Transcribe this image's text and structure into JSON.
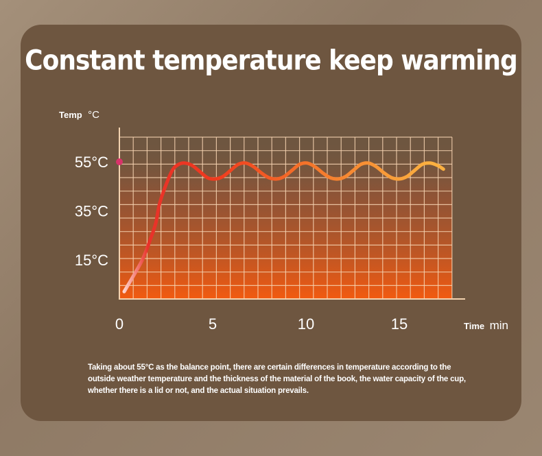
{
  "title": "Constant temperature keep warming",
  "chart_data": {
    "type": "line",
    "title": "Constant temperature keep warming",
    "ylabel_bold": "Temp",
    "ylabel_unit": "°C",
    "xlabel_bold": "Time",
    "xlabel_unit": "min",
    "y_ticks": [
      {
        "value": 15,
        "label": "15°C"
      },
      {
        "value": 35,
        "label": "35°C"
      },
      {
        "value": 55,
        "label": "55°C"
      }
    ],
    "x_ticks": [
      {
        "value": 0,
        "label": "0"
      },
      {
        "value": 5,
        "label": "5"
      },
      {
        "value": 10,
        "label": "10"
      },
      {
        "value": 15,
        "label": "15"
      }
    ],
    "xlim": [
      0,
      18
    ],
    "ylim": [
      -1,
      69
    ],
    "balance_point": 55,
    "grid": true,
    "series": [
      {
        "name": "Temperature",
        "x": [
          0.25,
          0.7,
          1.2,
          1.6,
          1.9,
          2.1,
          2.5,
          2.8,
          3.1,
          3.4,
          3.8,
          4.2,
          4.6,
          5.0,
          5.4,
          5.8,
          6.2,
          6.6,
          7.0,
          7.4,
          7.8,
          8.2,
          8.6,
          9.0,
          9.4,
          9.8,
          10.2,
          10.6,
          11.0,
          11.4,
          11.8,
          12.2,
          12.6,
          13.0,
          13.4,
          13.8,
          14.2,
          14.6,
          15.0,
          15.4,
          15.8,
          16.2,
          16.6,
          16.9
        ],
        "y": [
          2,
          8,
          15,
          23,
          30,
          38,
          47,
          52,
          54,
          54.5,
          53.5,
          51,
          48.5,
          48,
          49,
          51.5,
          54,
          54.5,
          53,
          50.5,
          48.5,
          48,
          49,
          51.5,
          54,
          54.5,
          53,
          50.5,
          48.5,
          48,
          49,
          51.5,
          54,
          54.5,
          53,
          50.5,
          48.5,
          48,
          49,
          51.5,
          54,
          54.5,
          53.5,
          52
        ]
      }
    ]
  },
  "note": "Taking about 55°C as the balance point, there are certain differences in temperature according to the outside weather temperature and the thickness of the material of the book, the water capacity of the cup, whether there is a lid or not, and the actual situation prevails."
}
